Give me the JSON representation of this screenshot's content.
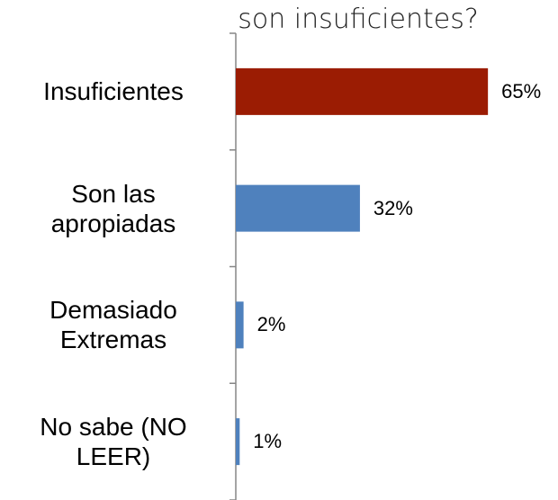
{
  "chart_data": {
    "type": "bar",
    "orientation": "horizontal",
    "title": "son insuficientes?",
    "categories": [
      "Insuficientes",
      "Son las apropiadas",
      "Demasiado Extremas",
      "No sabe (NO LEER)"
    ],
    "values": [
      65,
      32,
      2,
      1
    ],
    "value_labels": [
      "65%",
      "32%",
      "2%",
      "1%"
    ],
    "colors": [
      "#9b1c03",
      "#4f81bd",
      "#4f81bd",
      "#4f81bd"
    ],
    "xlim": [
      0,
      100
    ]
  }
}
